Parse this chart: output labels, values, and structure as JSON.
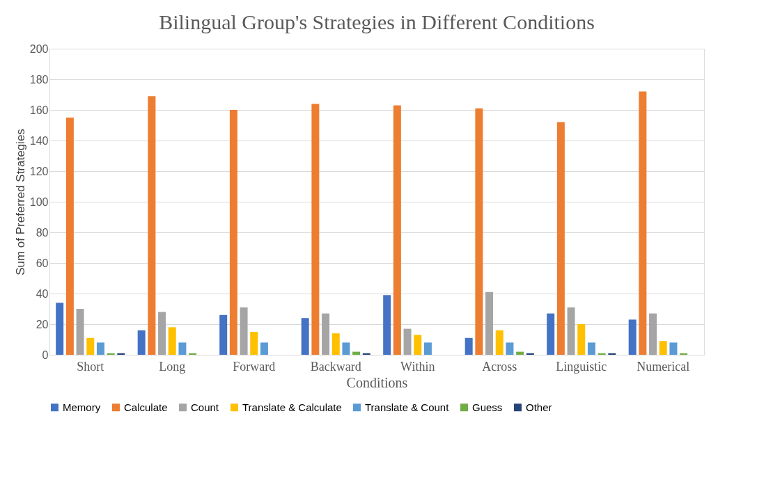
{
  "chart_data": {
    "type": "bar",
    "title": "Bilingual Group's Strategies in Different Conditions",
    "xlabel": "Conditions",
    "ylabel": "Sum of Preferred Strategies",
    "categories": [
      "Short",
      "Long",
      "Forward",
      "Backward",
      "Within",
      "Across",
      "Linguistic",
      "Numerical"
    ],
    "series": [
      {
        "name": "Memory",
        "color": "#4472c4",
        "values": [
          34,
          16,
          26,
          24,
          39,
          11,
          27,
          23
        ]
      },
      {
        "name": "Calculate",
        "color": "#ed7d31",
        "values": [
          155,
          169,
          160,
          164,
          163,
          161,
          152,
          172
        ]
      },
      {
        "name": "Count",
        "color": "#a5a5a5",
        "values": [
          30,
          28,
          31,
          27,
          17,
          41,
          31,
          27
        ]
      },
      {
        "name": "Translate & Calculate",
        "color": "#ffc000",
        "values": [
          11,
          18,
          15,
          14,
          13,
          16,
          20,
          9
        ]
      },
      {
        "name": "Translate & Count",
        "color": "#5b9bd5",
        "values": [
          8,
          8,
          8,
          8,
          8,
          8,
          8,
          8
        ]
      },
      {
        "name": "Guess",
        "color": "#70ad47",
        "values": [
          1,
          1,
          0,
          2,
          0,
          2,
          1,
          1
        ]
      },
      {
        "name": "Other",
        "color": "#264478",
        "values": [
          1,
          0,
          0,
          1,
          0,
          1,
          1,
          0
        ]
      }
    ],
    "ylim": [
      0,
      200
    ],
    "yticks": [
      0,
      20,
      40,
      60,
      80,
      100,
      120,
      140,
      160,
      180,
      200
    ],
    "grid": "y",
    "legend": "bottom"
  }
}
